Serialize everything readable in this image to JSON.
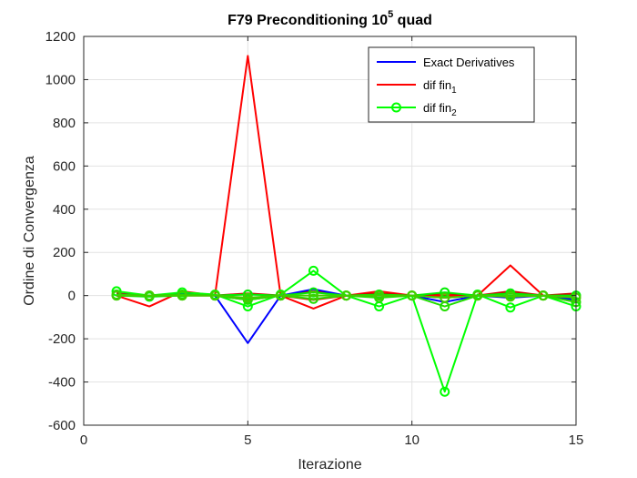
{
  "chart_data": {
    "type": "line",
    "title": {
      "main": "F79 Preconditioning 10",
      "sup": "5",
      "rest": " quad"
    },
    "xlabel": "Iterazione",
    "ylabel": "Ordine di Convergenza",
    "xlim": [
      0,
      15
    ],
    "ylim": [
      -600,
      1200
    ],
    "xticks": [
      0,
      5,
      10,
      15
    ],
    "yticks": [
      -600,
      -400,
      -200,
      0,
      200,
      400,
      600,
      800,
      1000,
      1200
    ],
    "grid": true,
    "legend_position": "top-right",
    "legend": [
      {
        "text": "Exact Derivatives",
        "sub": "",
        "color": "#0000ff",
        "marker": false
      },
      {
        "text": "dif fin",
        "sub": "1",
        "color": "#ff0000",
        "marker": false
      },
      {
        "text": "dif fin",
        "sub": "2",
        "color": "#00ff00",
        "marker": true
      }
    ],
    "x": [
      1,
      2,
      3,
      4,
      5,
      6,
      7,
      8,
      9,
      10,
      11,
      12,
      13,
      14,
      15
    ],
    "series": [
      {
        "group": "exact",
        "color": "#0000ff",
        "marker": false,
        "values": [
          5,
          0,
          10,
          0,
          -220,
          0,
          30,
          0,
          0,
          0,
          -30,
          0,
          -10,
          0,
          -20
        ]
      },
      {
        "group": "fin1",
        "color": "#ff0000",
        "marker": false,
        "values": [
          0,
          -50,
          20,
          0,
          1110,
          0,
          -60,
          0,
          20,
          0,
          0,
          0,
          140,
          0,
          -30
        ]
      },
      {
        "group": "fin1",
        "color": "#cc0000",
        "marker": false,
        "values": [
          10,
          0,
          10,
          0,
          10,
          0,
          20,
          0,
          10,
          0,
          10,
          0,
          20,
          0,
          10
        ]
      },
      {
        "group": "fin1",
        "color": "#dd1100",
        "marker": false,
        "values": [
          0,
          0,
          0,
          0,
          -20,
          0,
          -20,
          0,
          0,
          0,
          -10,
          0,
          10,
          0,
          0
        ]
      },
      {
        "group": "fin2",
        "color": "#00ff00",
        "marker": true,
        "values": [
          20,
          0,
          15,
          5,
          -50,
          5,
          115,
          0,
          -50,
          0,
          -445,
          5,
          -55,
          0,
          -50
        ]
      },
      {
        "group": "fin2",
        "color": "#00ee00",
        "marker": true,
        "values": [
          0,
          -5,
          0,
          0,
          5,
          0,
          15,
          0,
          5,
          0,
          15,
          0,
          10,
          0,
          0
        ]
      },
      {
        "group": "fin2",
        "color": "#22dd00",
        "marker": true,
        "values": [
          5,
          0,
          5,
          0,
          -20,
          0,
          -15,
          0,
          -10,
          0,
          -50,
          0,
          0,
          0,
          -30
        ]
      },
      {
        "group": "fin2",
        "color": "#44cc00",
        "marker": true,
        "values": [
          0,
          0,
          0,
          0,
          -10,
          0,
          0,
          0,
          0,
          0,
          -10,
          0,
          -5,
          0,
          -10
        ]
      }
    ]
  }
}
